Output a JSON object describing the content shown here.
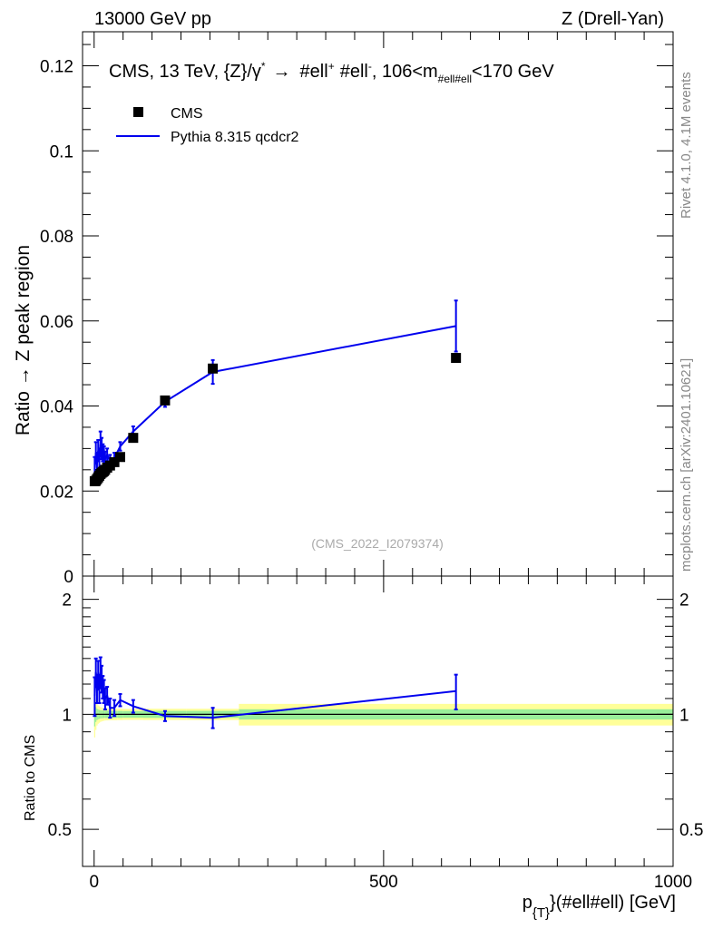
{
  "header": {
    "left": "13000 GeV pp",
    "right": "Z (Drell-Yan)"
  },
  "side_labels": {
    "rivet": "Rivet 4.1.0,  4.1M events",
    "url": "mcplots.cern.ch [arXiv:2401.10621]"
  },
  "colors": {
    "data": "#000000",
    "mc": "#0000ee",
    "band_inner": "#99ee99",
    "band_outer": "#ffff99"
  },
  "chart_data": [
    {
      "type": "scatter",
      "panel": "main",
      "title_parts": {
        "prefix": "CMS, 13 TeV, {Z}/",
        "gamma": "γ",
        "star": "*",
        "arrow": "→",
        "ell1": "#ell",
        "plus": "+",
        "ell2": "#ell",
        "minus": "-",
        "mass": ", 106<m",
        "mass_sub": "#ell#ell",
        "mass_end": "<170 GeV"
      },
      "ylabel": "Ratio → Z peak region",
      "xlim": [
        -20,
        1000
      ],
      "ylim": [
        0,
        0.128
      ],
      "yticks": [
        0,
        0.02,
        0.04,
        0.06,
        0.08,
        0.1,
        0.12
      ],
      "ytick_labels": [
        "0",
        "0.02",
        "0.04",
        "0.06",
        "0.08",
        "0.1",
        "0.12"
      ],
      "watermark": "(CMS_2022_I2079374)",
      "legend": [
        "CMS",
        "Pythia 8.315 qcdcr2"
      ],
      "series": [
        {
          "name": "CMS",
          "x": [
            1,
            3,
            5,
            7,
            9,
            11,
            13,
            15,
            17,
            19,
            22.5,
            27.5,
            35,
            45,
            67.5,
            122.5,
            205,
            625
          ],
          "y": [
            0.0223,
            0.0224,
            0.0228,
            0.0232,
            0.0236,
            0.024,
            0.0243,
            0.0245,
            0.0247,
            0.025,
            0.0255,
            0.026,
            0.0268,
            0.028,
            0.0325,
            0.0413,
            0.0488,
            0.0513
          ]
        },
        {
          "name": "Pythia 8.315 qcdcr2",
          "x": [
            1,
            3,
            5,
            7,
            9,
            11,
            13,
            15,
            17,
            19,
            22.5,
            27.5,
            35,
            45,
            67.5,
            122.5,
            205,
            625
          ],
          "y": [
            0.025,
            0.029,
            0.0265,
            0.0295,
            0.0275,
            0.031,
            0.03,
            0.029,
            0.0285,
            0.0275,
            0.0285,
            0.027,
            0.0278,
            0.0305,
            0.034,
            0.041,
            0.048,
            0.0588
          ],
          "yerr": [
            0.003,
            0.0025,
            0.0025,
            0.0025,
            0.0025,
            0.003,
            0.0025,
            0.002,
            0.002,
            0.0018,
            0.0015,
            0.0015,
            0.0012,
            0.001,
            0.0012,
            0.0012,
            0.0028,
            0.006
          ]
        }
      ]
    },
    {
      "type": "line",
      "panel": "ratio",
      "ylabel": "Ratio to CMS",
      "xlabel_parts": {
        "p": "p",
        "sub": "{T}",
        "rest": "}(#ell#ell) [GeV]"
      },
      "xlim": [
        -20,
        1000
      ],
      "ylim": [
        0.4,
        2.3
      ],
      "ytick_labels": [
        "0.5",
        "1",
        "2"
      ],
      "xtick_labels": [
        "0",
        "500",
        "1000"
      ],
      "reference": 1.0,
      "band_edges": [
        0,
        2,
        4,
        6,
        8,
        10,
        12,
        14,
        16,
        18,
        20,
        25,
        30,
        40,
        50,
        85,
        160,
        250,
        1000
      ],
      "band_inner": [
        0.07,
        0.045,
        0.035,
        0.03,
        0.027,
        0.025,
        0.024,
        0.023,
        0.022,
        0.022,
        0.022,
        0.021,
        0.021,
        0.021,
        0.02,
        0.021,
        0.021,
        0.031
      ],
      "band_outer": [
        0.13,
        0.09,
        0.065,
        0.055,
        0.05,
        0.045,
        0.042,
        0.04,
        0.038,
        0.037,
        0.036,
        0.035,
        0.035,
        0.034,
        0.033,
        0.034,
        0.034,
        0.065
      ],
      "series": [
        {
          "name": "Pythia 8.315 qcdcr2",
          "x": [
            1,
            3,
            5,
            7,
            9,
            11,
            13,
            15,
            17,
            19,
            22.5,
            27.5,
            35,
            45,
            67.5,
            122.5,
            205,
            625
          ],
          "y": [
            1.12,
            1.29,
            1.17,
            1.27,
            1.17,
            1.29,
            1.24,
            1.18,
            1.15,
            1.1,
            1.12,
            1.04,
            1.04,
            1.09,
            1.05,
            0.99,
            0.98,
            1.15
          ],
          "yerr": [
            0.13,
            0.11,
            0.1,
            0.11,
            0.1,
            0.12,
            0.1,
            0.08,
            0.08,
            0.07,
            0.06,
            0.06,
            0.05,
            0.04,
            0.04,
            0.03,
            0.06,
            0.12
          ]
        }
      ]
    }
  ]
}
